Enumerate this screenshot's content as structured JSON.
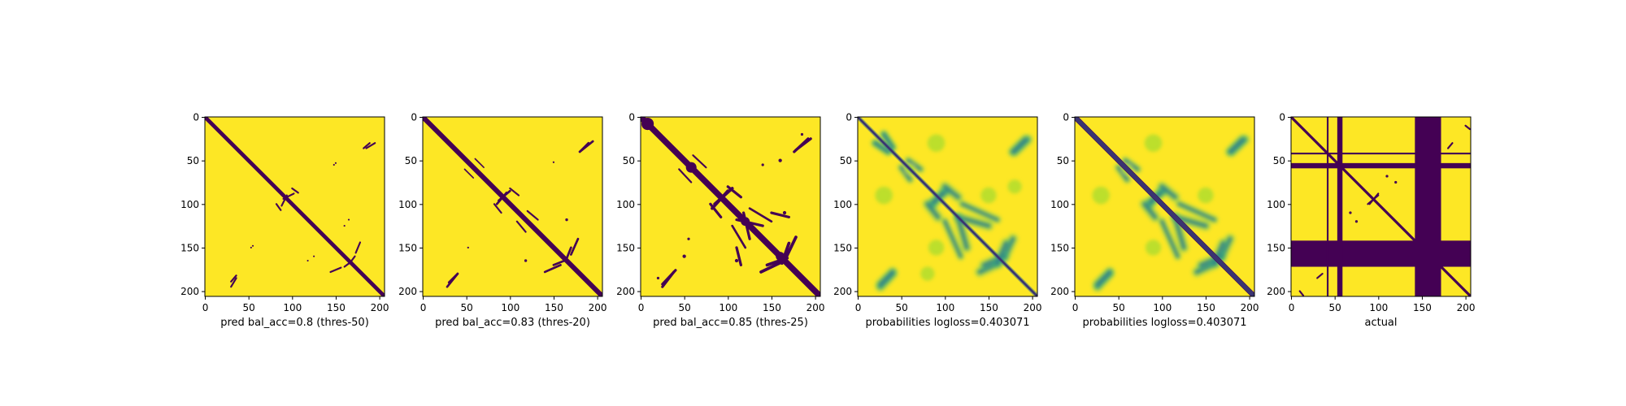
{
  "figure": {
    "colors": {
      "low": "#440154",
      "high": "#fde725",
      "mid_green": "#35b779",
      "mid_blue": "#31688e",
      "light": "#b5de2b"
    }
  },
  "chart_data": [
    {
      "type": "heatmap",
      "title": "",
      "xlabel": "pred bal_acc=0.8 (thres-50)",
      "ylabel": "",
      "matrix_size": 206,
      "xlim": [
        0,
        206
      ],
      "ylim": [
        206,
        0
      ],
      "xticks": [
        0,
        50,
        100,
        150,
        200
      ],
      "yticks": [
        0,
        50,
        100,
        150,
        200
      ],
      "colormap": "viridis",
      "kind": "binary",
      "diagonal_halfwidth": 2.2,
      "features": [
        {
          "shape": "segment",
          "from": [
            185,
            36
          ],
          "to": [
            195,
            30
          ],
          "w": 2
        },
        {
          "shape": "segment",
          "from": [
            88,
            102
          ],
          "to": [
            94,
            90
          ],
          "w": 2
        },
        {
          "shape": "segment",
          "from": [
            100,
            82
          ],
          "to": [
            107,
            87
          ],
          "w": 2
        },
        {
          "shape": "segment",
          "from": [
            178,
            144
          ],
          "to": [
            173,
            156
          ],
          "w": 2
        },
        {
          "shape": "segment",
          "from": [
            160,
            172
          ],
          "to": [
            168,
            166
          ],
          "w": 2
        },
        {
          "shape": "segment",
          "from": [
            36,
            182
          ],
          "to": [
            30,
            189
          ],
          "w": 2
        },
        {
          "shape": "dot",
          "at": [
            150,
            53
          ],
          "r": 1
        },
        {
          "shape": "dot",
          "at": [
            55,
            148
          ],
          "r": 1
        },
        {
          "shape": "dot",
          "at": [
            165,
            118
          ],
          "r": 1
        },
        {
          "shape": "dot",
          "at": [
            125,
            160
          ],
          "r": 1
        }
      ]
    },
    {
      "type": "heatmap",
      "title": "",
      "xlabel": "pred bal_acc=0.83 (thres-20)",
      "ylabel": "",
      "matrix_size": 206,
      "xlim": [
        0,
        206
      ],
      "ylim": [
        206,
        0
      ],
      "xticks": [
        0,
        50,
        100,
        150,
        200
      ],
      "yticks": [
        0,
        50,
        100,
        150,
        200
      ],
      "colormap": "viridis",
      "kind": "binary",
      "diagonal_halfwidth": 2.8,
      "features": [
        {
          "shape": "segment",
          "from": [
            180,
            40
          ],
          "to": [
            195,
            28
          ],
          "w": 2.5
        },
        {
          "shape": "segment",
          "from": [
            60,
            48
          ],
          "to": [
            70,
            58
          ],
          "w": 1.5
        },
        {
          "shape": "segment",
          "from": [
            85,
            100
          ],
          "to": [
            96,
            87
          ],
          "w": 2.5
        },
        {
          "shape": "segment",
          "from": [
            100,
            82
          ],
          "to": [
            110,
            90
          ],
          "w": 2
        },
        {
          "shape": "segment",
          "from": [
            120,
            108
          ],
          "to": [
            132,
            118
          ],
          "w": 2
        },
        {
          "shape": "segment",
          "from": [
            178,
            140
          ],
          "to": [
            170,
            158
          ],
          "w": 2.5
        },
        {
          "shape": "segment",
          "from": [
            150,
            170
          ],
          "to": [
            165,
            164
          ],
          "w": 2.5
        },
        {
          "shape": "segment",
          "from": [
            40,
            180
          ],
          "to": [
            30,
            190
          ],
          "w": 2.5
        },
        {
          "shape": "dot",
          "at": [
            165,
            118
          ],
          "r": 1.5
        },
        {
          "shape": "dot",
          "at": [
            118,
            165
          ],
          "r": 1.5
        },
        {
          "shape": "dot",
          "at": [
            150,
            52
          ],
          "r": 1
        },
        {
          "shape": "dot",
          "at": [
            52,
            150
          ],
          "r": 1
        }
      ]
    },
    {
      "type": "heatmap",
      "title": "",
      "xlabel": "pred bal_acc=0.85 (thres-25)",
      "ylabel": "",
      "matrix_size": 206,
      "xlim": [
        0,
        206
      ],
      "ylim": [
        206,
        0
      ],
      "xticks": [
        0,
        50,
        100,
        150,
        200
      ],
      "yticks": [
        0,
        50,
        100,
        150,
        200
      ],
      "colormap": "viridis",
      "kind": "binary",
      "diagonal_halfwidth": 3.5,
      "features": [
        {
          "shape": "blob",
          "at": [
            8,
            8
          ],
          "r": 7
        },
        {
          "shape": "blob",
          "at": [
            58,
            58
          ],
          "r": 6
        },
        {
          "shape": "blob",
          "at": [
            120,
            120
          ],
          "r": 5
        },
        {
          "shape": "blob",
          "at": [
            160,
            160
          ],
          "r": 5
        },
        {
          "shape": "segment",
          "from": [
            178,
            38
          ],
          "to": [
            195,
            25
          ],
          "w": 3
        },
        {
          "shape": "segment",
          "from": [
            60,
            44
          ],
          "to": [
            75,
            58
          ],
          "w": 2
        },
        {
          "shape": "segment",
          "from": [
            82,
            105
          ],
          "to": [
            100,
            85
          ],
          "w": 3.5
        },
        {
          "shape": "segment",
          "from": [
            100,
            80
          ],
          "to": [
            115,
            92
          ],
          "w": 3
        },
        {
          "shape": "segment",
          "from": [
            110,
            118
          ],
          "to": [
            140,
            125
          ],
          "w": 3
        },
        {
          "shape": "segment",
          "from": [
            125,
            105
          ],
          "to": [
            150,
            120
          ],
          "w": 2.5
        },
        {
          "shape": "segment",
          "from": [
            178,
            138
          ],
          "to": [
            165,
            165
          ],
          "w": 3.5
        },
        {
          "shape": "segment",
          "from": [
            145,
            170
          ],
          "to": [
            168,
            162
          ],
          "w": 3.5
        },
        {
          "shape": "segment",
          "from": [
            40,
            176
          ],
          "to": [
            25,
            192
          ],
          "w": 3
        },
        {
          "shape": "segment",
          "from": [
            110,
            150
          ],
          "to": [
            115,
            170
          ],
          "w": 3
        },
        {
          "shape": "dot",
          "at": [
            160,
            50
          ],
          "r": 2
        },
        {
          "shape": "dot",
          "at": [
            165,
            110
          ],
          "r": 2
        },
        {
          "shape": "dot",
          "at": [
            20,
            185
          ],
          "r": 1.5
        },
        {
          "shape": "dot",
          "at": [
            55,
            140
          ],
          "r": 1.5
        }
      ]
    },
    {
      "type": "heatmap",
      "title": "",
      "xlabel": "probabilities logloss=0.403071",
      "ylabel": "",
      "matrix_size": 206,
      "xlim": [
        0,
        206
      ],
      "ylim": [
        206,
        0
      ],
      "xticks": [
        0,
        50,
        100,
        150,
        200
      ],
      "yticks": [
        0,
        50,
        100,
        150,
        200
      ],
      "colormap": "viridis",
      "kind": "prob",
      "diagonal_halfwidth": 1.2,
      "features": [
        {
          "shape": "segment",
          "from": [
            180,
            40
          ],
          "to": [
            195,
            26
          ],
          "w": 5
        },
        {
          "shape": "segment",
          "from": [
            58,
            50
          ],
          "to": [
            72,
            60
          ],
          "w": 4
        },
        {
          "shape": "segment",
          "from": [
            85,
            102
          ],
          "to": [
            98,
            86
          ],
          "w": 5
        },
        {
          "shape": "segment",
          "from": [
            100,
            80
          ],
          "to": [
            115,
            92
          ],
          "w": 5
        },
        {
          "shape": "segment",
          "from": [
            115,
            115
          ],
          "to": [
            150,
            125
          ],
          "w": 5
        },
        {
          "shape": "segment",
          "from": [
            120,
            100
          ],
          "to": [
            160,
            118
          ],
          "w": 4
        },
        {
          "shape": "segment",
          "from": [
            178,
            140
          ],
          "to": [
            168,
            162
          ],
          "w": 5
        },
        {
          "shape": "segment",
          "from": [
            145,
            170
          ],
          "to": [
            168,
            160
          ],
          "w": 5
        },
        {
          "shape": "segment",
          "from": [
            40,
            178
          ],
          "to": [
            26,
            192
          ],
          "w": 5
        },
        {
          "shape": "segment",
          "from": [
            30,
            20
          ],
          "to": [
            40,
            35
          ],
          "w": 4
        },
        {
          "shape": "segment",
          "from": [
            20,
            30
          ],
          "to": [
            35,
            40
          ],
          "w": 4
        },
        {
          "shape": "blob",
          "at": [
            60,
            60
          ],
          "r": 6
        },
        {
          "shape": "blob",
          "at": [
            90,
            30
          ],
          "r": 10
        },
        {
          "shape": "blob",
          "at": [
            30,
            90
          ],
          "r": 10
        },
        {
          "shape": "blob",
          "at": [
            150,
            90
          ],
          "r": 9
        },
        {
          "shape": "blob",
          "at": [
            90,
            150
          ],
          "r": 9
        },
        {
          "shape": "blob",
          "at": [
            180,
            80
          ],
          "r": 8
        },
        {
          "shape": "blob",
          "at": [
            80,
            180
          ],
          "r": 8
        }
      ]
    },
    {
      "type": "heatmap",
      "title": "",
      "xlabel": "probabilities logloss=0.403071",
      "ylabel": "",
      "matrix_size": 206,
      "xlim": [
        0,
        206
      ],
      "ylim": [
        206,
        0
      ],
      "xticks": [
        0,
        50,
        100,
        150,
        200
      ],
      "yticks": [
        0,
        50,
        100,
        150,
        200
      ],
      "colormap": "viridis",
      "kind": "prob",
      "diagonal_halfwidth": 3,
      "features": [
        {
          "shape": "segment",
          "from": [
            180,
            40
          ],
          "to": [
            195,
            26
          ],
          "w": 5
        },
        {
          "shape": "segment",
          "from": [
            58,
            50
          ],
          "to": [
            72,
            60
          ],
          "w": 4
        },
        {
          "shape": "segment",
          "from": [
            85,
            102
          ],
          "to": [
            98,
            86
          ],
          "w": 5
        },
        {
          "shape": "segment",
          "from": [
            100,
            80
          ],
          "to": [
            115,
            92
          ],
          "w": 5
        },
        {
          "shape": "segment",
          "from": [
            115,
            115
          ],
          "to": [
            150,
            125
          ],
          "w": 5
        },
        {
          "shape": "segment",
          "from": [
            120,
            100
          ],
          "to": [
            160,
            118
          ],
          "w": 4
        },
        {
          "shape": "segment",
          "from": [
            178,
            140
          ],
          "to": [
            168,
            162
          ],
          "w": 5
        },
        {
          "shape": "segment",
          "from": [
            145,
            170
          ],
          "to": [
            168,
            160
          ],
          "w": 5
        },
        {
          "shape": "segment",
          "from": [
            40,
            178
          ],
          "to": [
            26,
            192
          ],
          "w": 5
        },
        {
          "shape": "blob",
          "at": [
            60,
            60
          ],
          "r": 6
        },
        {
          "shape": "blob",
          "at": [
            90,
            30
          ],
          "r": 10
        },
        {
          "shape": "blob",
          "at": [
            30,
            90
          ],
          "r": 10
        },
        {
          "shape": "blob",
          "at": [
            150,
            90
          ],
          "r": 9
        },
        {
          "shape": "blob",
          "at": [
            90,
            150
          ],
          "r": 9
        }
      ]
    },
    {
      "type": "heatmap",
      "title": "",
      "xlabel": "actual",
      "ylabel": "",
      "matrix_size": 206,
      "xlim": [
        0,
        206
      ],
      "ylim": [
        206,
        0
      ],
      "xticks": [
        0,
        50,
        100,
        150,
        200
      ],
      "yticks": [
        0,
        50,
        100,
        150,
        200
      ],
      "colormap": "viridis",
      "kind": "actual",
      "diagonal_halfwidth": 1.5,
      "masked_rows": [
        [
          41,
          43
        ],
        [
          53,
          59
        ],
        [
          142,
          172
        ]
      ],
      "masked_cols": [
        [
          41,
          43
        ],
        [
          53,
          59
        ],
        [
          142,
          172
        ]
      ],
      "features": [
        {
          "shape": "segment",
          "from": [
            90,
            100
          ],
          "to": [
            100,
            88
          ],
          "w": 2
        },
        {
          "shape": "segment",
          "from": [
            30,
            185
          ],
          "to": [
            36,
            180
          ],
          "w": 2
        },
        {
          "shape": "segment",
          "from": [
            200,
            10
          ],
          "to": [
            205,
            14
          ],
          "w": 2
        },
        {
          "shape": "dot",
          "at": [
            75,
            120
          ],
          "r": 1.5
        },
        {
          "shape": "dot",
          "at": [
            68,
            110
          ],
          "r": 1.5
        }
      ]
    }
  ]
}
